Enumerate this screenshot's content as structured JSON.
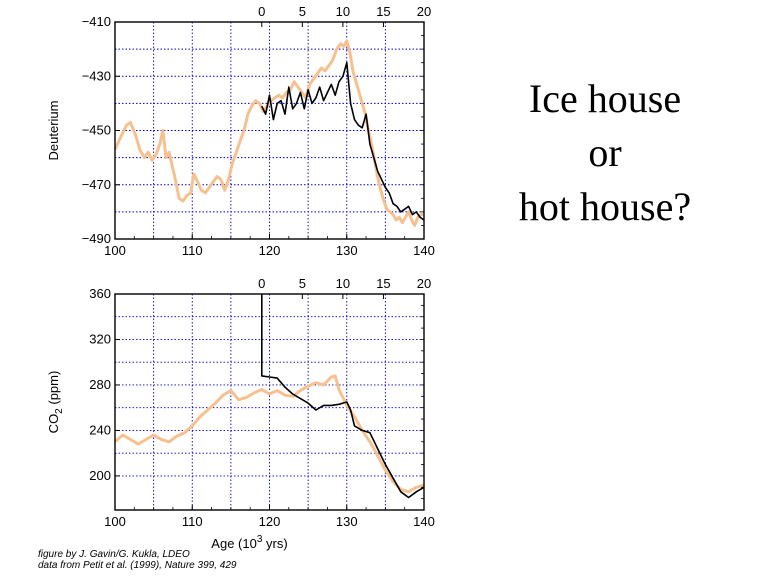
{
  "side_text": {
    "line1": "Ice house",
    "line2": "or",
    "line3": "hot house?"
  },
  "credit": {
    "line1": "figure by J. Gavin/G. Kukla, LDEO",
    "line2": "data from Petit et al. (1999), Nature 399, 429"
  },
  "colors": {
    "proxy_series": "#f7c08f",
    "black_series": "#000000",
    "grid": "#0000cc"
  },
  "chart_data": [
    {
      "type": "line",
      "title": "",
      "ylabel": "Deuterium",
      "xlabel": "",
      "xlim": [
        100,
        140
      ],
      "ylim": [
        -490,
        -410
      ],
      "xticks": [
        100,
        110,
        120,
        130,
        140
      ],
      "yticks": [
        -410,
        -430,
        -450,
        -470,
        -490
      ],
      "top_axis": {
        "ticks": [
          0,
          5,
          10,
          15,
          20
        ],
        "range": [
          0,
          20
        ],
        "start_x": 119
      },
      "grid": true,
      "series": [
        {
          "color": "#f7c08f",
          "x": [
            100,
            100.8,
            101.5,
            102,
            102.7,
            103.2,
            103.8,
            104.3,
            104.8,
            105.3,
            105.8,
            106.2,
            106.6,
            107,
            107.4,
            107.8,
            108.3,
            108.8,
            109.3,
            109.8,
            110.2,
            110.7,
            111.2,
            111.7,
            112.2,
            112.7,
            113.2,
            113.7,
            114.2,
            114.7,
            115.2,
            115.7,
            116.2,
            116.7,
            117.2,
            117.7,
            118.2,
            118.7,
            119.2,
            119.7,
            120.2,
            120.7,
            121.2,
            121.7,
            122.2,
            122.7,
            123.2,
            123.7,
            124.2,
            124.7,
            125.2,
            125.7,
            126.2,
            126.7,
            127.2,
            127.7,
            128.2,
            128.7,
            129.2,
            129.6,
            130,
            130.4,
            130.8,
            131.2,
            131.6,
            132,
            132.4,
            132.8,
            133.2,
            133.6,
            134,
            134.4,
            134.8,
            135.2,
            135.6,
            136,
            136.4,
            136.8,
            137.2,
            137.6,
            138,
            138.4,
            138.8,
            139.2,
            139.6,
            140
          ],
          "y": [
            -457,
            -452,
            -448,
            -447,
            -452,
            -457,
            -460,
            -458,
            -461,
            -459,
            -455,
            -450,
            -460,
            -458,
            -463,
            -468,
            -475,
            -476,
            -474,
            -473,
            -466,
            -469,
            -472,
            -473,
            -471,
            -469,
            -467,
            -468,
            -472,
            -468,
            -462,
            -458,
            -454,
            -450,
            -444,
            -441,
            -439,
            -440,
            -443,
            -441,
            -439,
            -438,
            -437,
            -438,
            -436,
            -435,
            -432,
            -434,
            -436,
            -438,
            -433,
            -431,
            -429,
            -427,
            -428,
            -426,
            -424,
            -420,
            -418,
            -419,
            -417,
            -421,
            -428,
            -432,
            -436,
            -440,
            -444,
            -450,
            -455,
            -461,
            -467,
            -472,
            -476,
            -479,
            -480,
            -481,
            -483,
            -482,
            -484,
            -482,
            -480,
            -483,
            -485,
            -482,
            -481,
            -481
          ]
        },
        {
          "color": "#000000",
          "x": [
            119,
            119.5,
            120,
            120.5,
            121,
            121.5,
            122,
            122.5,
            123,
            123.5,
            124,
            124.5,
            125,
            125.5,
            126,
            126.5,
            127,
            127.5,
            128,
            128.5,
            129,
            129.5,
            130,
            130.5,
            131,
            131.5,
            132,
            132.5,
            133,
            133.5,
            134,
            134.5,
            135,
            135.5,
            136,
            136.5,
            137,
            137.5,
            138,
            138.5,
            139,
            139.5,
            140
          ],
          "y": [
            -441,
            -444,
            -437,
            -446,
            -440,
            -439,
            -444,
            -434,
            -442,
            -440,
            -436,
            -442,
            -435,
            -440,
            -438,
            -434,
            -439,
            -436,
            -433,
            -437,
            -432,
            -430,
            -425,
            -440,
            -446,
            -448,
            -449,
            -444,
            -455,
            -460,
            -465,
            -468,
            -471,
            -473,
            -477,
            -478,
            -480,
            -479,
            -478,
            -481,
            -480,
            -482,
            -483
          ]
        }
      ]
    },
    {
      "type": "line",
      "title": "",
      "ylabel": "CO2 (ppm)",
      "xlabel": "Age (10^3 yrs)",
      "xlim": [
        100,
        140
      ],
      "ylim": [
        170,
        360
      ],
      "xticks": [
        100,
        110,
        120,
        130,
        140
      ],
      "yticks": [
        200,
        240,
        280,
        320,
        360
      ],
      "top_axis": {
        "ticks": [
          0,
          5,
          10,
          15,
          20
        ],
        "range": [
          0,
          20
        ],
        "start_x": 119
      },
      "grid": true,
      "series": [
        {
          "color": "#f7c08f",
          "x": [
            100,
            101,
            102,
            103,
            104,
            105,
            106,
            107,
            108,
            109,
            110,
            111,
            112,
            113,
            114,
            115,
            116,
            117,
            118,
            119,
            120,
            121,
            122,
            123,
            124,
            125,
            126,
            127,
            128,
            128.5,
            129,
            130,
            131,
            132,
            133,
            134,
            135,
            136,
            137,
            138,
            139,
            140
          ],
          "y": [
            230,
            236,
            232,
            228,
            232,
            236,
            232,
            230,
            235,
            238,
            244,
            252,
            258,
            264,
            271,
            275,
            267,
            269,
            273,
            276,
            272,
            275,
            271,
            270,
            275,
            279,
            282,
            280,
            287,
            288,
            276,
            262,
            252,
            240,
            230,
            218,
            205,
            195,
            188,
            186,
            190,
            192
          ]
        },
        {
          "color": "#000000",
          "x": [
            119,
            119,
            120,
            121,
            122,
            123,
            124,
            125,
            126,
            127,
            128,
            129,
            130,
            130.5,
            131,
            132,
            133,
            134,
            135,
            136,
            137,
            138,
            139,
            140
          ],
          "y": [
            360,
            288,
            287,
            286,
            278,
            272,
            268,
            264,
            258,
            262,
            262,
            263,
            265,
            258,
            244,
            240,
            238,
            224,
            210,
            198,
            186,
            181,
            186,
            190
          ]
        }
      ]
    }
  ]
}
